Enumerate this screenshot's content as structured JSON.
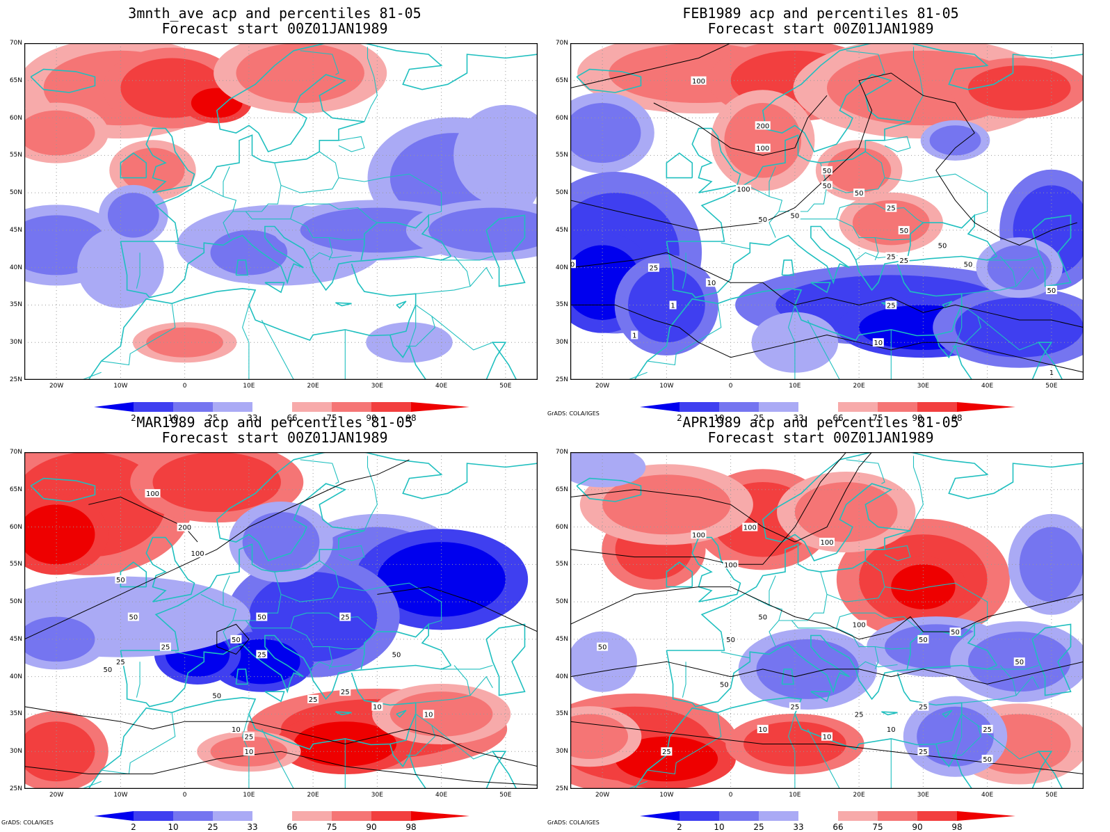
{
  "panels": [
    {
      "id": "p1",
      "title1": "3mnth_ave acp and percentiles 81-05",
      "title2": "Forecast start 00Z01JAN1989",
      "contours": false,
      "credit": ""
    },
    {
      "id": "p2",
      "title1": "FEB1989 acp and percentiles 81-05",
      "title2": "Forecast start 00Z01JAN1989",
      "contours": true,
      "credit": "GrADS: COLA/IGES"
    },
    {
      "id": "p3",
      "title1": "MAR1989 acp and percentiles 81-05",
      "title2": "Forecast start 00Z01JAN1989",
      "contours": true,
      "credit": "GrADS: COLA/IGES"
    },
    {
      "id": "p4",
      "title1": "APR1989 acp and percentiles 81-05",
      "title2": "Forecast start 00Z01JAN1989",
      "contours": true,
      "credit": "GrADS: COLA/IGES"
    }
  ],
  "lat_labels": [
    "70N",
    "65N",
    "60N",
    "55N",
    "50N",
    "45N",
    "40N",
    "35N",
    "30N",
    "25N"
  ],
  "lon_labels": [
    "20W",
    "10W",
    "0",
    "10E",
    "20E",
    "30E",
    "40E",
    "50E"
  ],
  "colorbar": {
    "labels": [
      "2",
      "10",
      "25",
      "33",
      "66",
      "75",
      "90",
      "98"
    ],
    "colors": [
      "#0000ee",
      "#3f3ff0",
      "#7575f0",
      "#aaaaf5",
      "#ffffff",
      "#f7aaaa",
      "#f57575",
      "#f23f3f",
      "#ee0000"
    ]
  },
  "colors": {
    "coast": "#1fbfbf",
    "grid": "#999999",
    "contour": "#000000"
  },
  "contour_labels": {
    "p2": [
      "100",
      "200",
      "100",
      "50",
      "50",
      "50",
      "100",
      "50",
      "50",
      "25",
      "50",
      "50",
      "25",
      "50",
      "25",
      "25",
      "10",
      "10",
      "1",
      "1",
      "25",
      "10",
      "1",
      "50"
    ],
    "p3": [
      "100",
      "200",
      "100",
      "50",
      "50",
      "25",
      "25",
      "50",
      "50",
      "50",
      "25",
      "25",
      "25",
      "50",
      "10",
      "50",
      "25",
      "10",
      "10",
      "25",
      "10"
    ],
    "p4": [
      "100",
      "100",
      "100",
      "100",
      "50",
      "50",
      "50",
      "100",
      "50",
      "50",
      "50",
      "25",
      "50",
      "25",
      "25",
      "25",
      "10",
      "10",
      "25",
      "50",
      "25",
      "10"
    ]
  }
}
